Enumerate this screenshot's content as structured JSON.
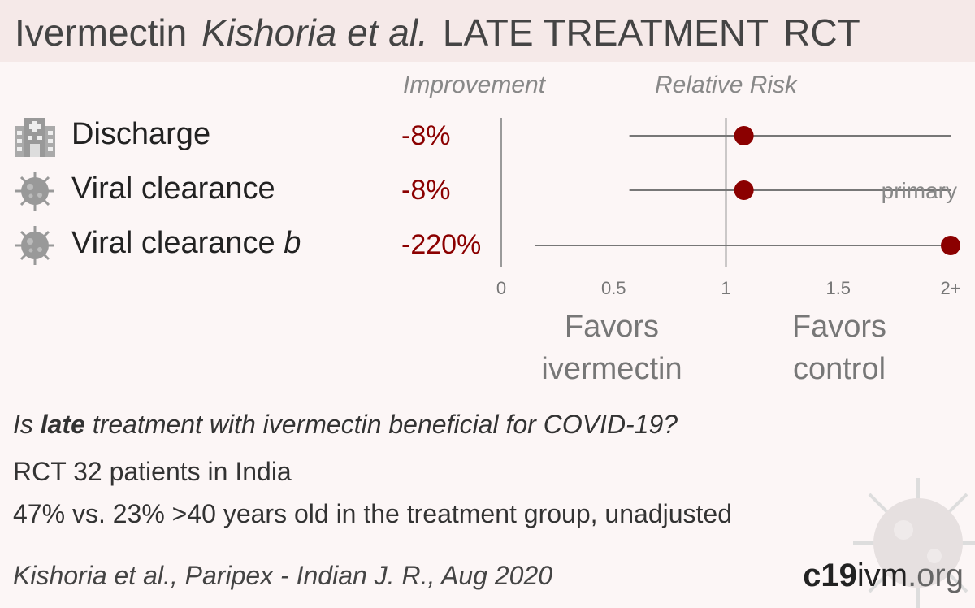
{
  "header": {
    "drug": "Ivermectin",
    "authors": "Kishoria et al.",
    "phase": "LATE TREATMENT",
    "design": "RCT"
  },
  "columns": {
    "improvement": "Improvement",
    "relative_risk": "Relative Risk"
  },
  "favors": {
    "left": "Favors ivermectin",
    "right": "Favors control"
  },
  "summary": {
    "question_prefix": "Is ",
    "question_bold": "late",
    "question_suffix": " treatment with ivermectin beneficial for COVID-19?",
    "line1": "RCT 32 patients in India",
    "line2": "47% vs. 23% >40 years old in the treatment group, unadjusted"
  },
  "citation": "Kishoria et al., Paripex - Indian J. R., Aug 2020",
  "logo": {
    "bold": "c19",
    "mid": "ivm",
    "domain": ".org"
  },
  "colors": {
    "point": "#8b0000",
    "improvement_text": "#8b0000",
    "axis": "#999999",
    "header_bg": "#f5e9e8"
  },
  "icons": {
    "discharge": "hospital-icon",
    "viral": "virus-icon"
  },
  "chart_data": {
    "type": "forest",
    "xlabel": "Relative Risk",
    "xlim": [
      0,
      2
    ],
    "ticks": [
      "0",
      "0.5",
      "1",
      "1.5",
      "2+"
    ],
    "reference_line": 1,
    "rows": [
      {
        "label": "Discharge",
        "label_suffix": "",
        "improvement": "-8%",
        "rr": 1.08,
        "ci": [
          0.57,
          2.0
        ],
        "ci_clipped_high": true,
        "note": ""
      },
      {
        "label": "Viral clearance",
        "label_suffix": "",
        "improvement": "-8%",
        "rr": 1.08,
        "ci": [
          0.57,
          2.0
        ],
        "ci_clipped_high": true,
        "note": "primary"
      },
      {
        "label": "Viral clearance",
        "label_suffix": "b",
        "improvement": "-220%",
        "rr": 3.2,
        "ci": [
          0.15,
          2.0
        ],
        "ci_clipped_high": true,
        "note": ""
      }
    ]
  }
}
